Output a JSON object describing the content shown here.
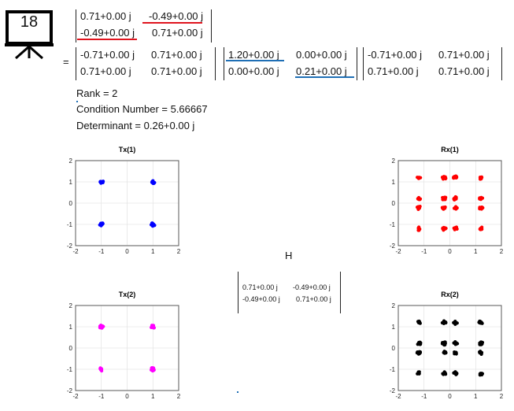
{
  "slide_icon": {
    "number": "18"
  },
  "equation": {
    "top_matrix": [
      [
        "0.71+0.00 j",
        "-0.49+0.00 j"
      ],
      [
        "-0.49+0.00 j",
        "0.71+0.00 j"
      ]
    ],
    "equals": "=",
    "U": [
      [
        "-0.71+0.00 j",
        "0.71+0.00 j"
      ],
      [
        "0.71+0.00 j",
        "0.71+0.00 j"
      ]
    ],
    "S": [
      [
        "1.20+0.00 j",
        "0.00+0.00 j"
      ],
      [
        "0.00+0.00 j",
        "0.21+0.00 j"
      ]
    ],
    "V": [
      [
        "-0.71+0.00 j",
        "0.71+0.00 j"
      ],
      [
        "0.71+0.00 j",
        "0.71+0.00 j"
      ]
    ]
  },
  "info": {
    "rank": "Rank = 2",
    "condition": "Condition Number = 5.66667",
    "determinant": "Determinant = 0.26+0.00 j"
  },
  "channel": {
    "label": "H",
    "matrix": [
      [
        "0.71+0.00 j",
        "-0.49+0.00 j"
      ],
      [
        "-0.49+0.00 j",
        "0.71+0.00 j"
      ]
    ]
  },
  "chart_data": [
    {
      "type": "scatter",
      "title": "Tx(1)",
      "color": "#0000ff",
      "xlim": [
        -2,
        2
      ],
      "ylim": [
        -2,
        2
      ],
      "xticks": [
        -2,
        -1,
        0,
        1,
        2
      ],
      "yticks": [
        -2,
        -1,
        0,
        1,
        2
      ],
      "grid": true,
      "x": [
        -1,
        1,
        -1,
        1
      ],
      "y": [
        1,
        1,
        -1,
        -1
      ]
    },
    {
      "type": "scatter",
      "title": "Rx(1)",
      "color": "#ff0000",
      "xlim": [
        -2,
        2
      ],
      "ylim": [
        -2,
        2
      ],
      "xticks": [
        -2,
        -1,
        0,
        1,
        2
      ],
      "yticks": [
        -2,
        -1,
        0,
        1,
        2
      ],
      "grid": true,
      "x": [
        -1.2,
        -0.22,
        0.22,
        1.2,
        -1.2,
        -0.22,
        0.22,
        1.2,
        -1.2,
        -0.22,
        0.22,
        1.2,
        -1.2,
        -0.22,
        0.22,
        1.2
      ],
      "y": [
        1.2,
        1.2,
        1.2,
        1.2,
        0.22,
        0.22,
        0.22,
        0.22,
        -0.22,
        -0.22,
        -0.22,
        -0.22,
        -1.2,
        -1.2,
        -1.2,
        -1.2
      ]
    },
    {
      "type": "scatter",
      "title": "Tx(2)",
      "color": "#ff00ff",
      "xlim": [
        -2,
        2
      ],
      "ylim": [
        -2,
        2
      ],
      "xticks": [
        -2,
        -1,
        0,
        1,
        2
      ],
      "yticks": [
        -2,
        -1,
        0,
        1,
        2
      ],
      "grid": true,
      "x": [
        -1,
        1,
        -1,
        1
      ],
      "y": [
        1,
        1,
        -1,
        -1
      ]
    },
    {
      "type": "scatter",
      "title": "Rx(2)",
      "color": "#000000",
      "xlim": [
        -2,
        2
      ],
      "ylim": [
        -2,
        2
      ],
      "xticks": [
        -2,
        -1,
        0,
        1,
        2
      ],
      "yticks": [
        -2,
        -1,
        0,
        1,
        2
      ],
      "grid": true,
      "x": [
        -1.2,
        -0.22,
        0.22,
        1.2,
        -1.2,
        -0.22,
        0.22,
        1.2,
        -1.2,
        -0.22,
        0.22,
        1.2,
        -1.2,
        -0.22,
        0.22,
        1.2
      ],
      "y": [
        1.2,
        1.2,
        1.2,
        1.2,
        0.22,
        0.22,
        0.22,
        0.22,
        -0.22,
        -0.22,
        -0.22,
        -0.22,
        -1.2,
        -1.2,
        -1.2,
        -1.2
      ]
    }
  ]
}
